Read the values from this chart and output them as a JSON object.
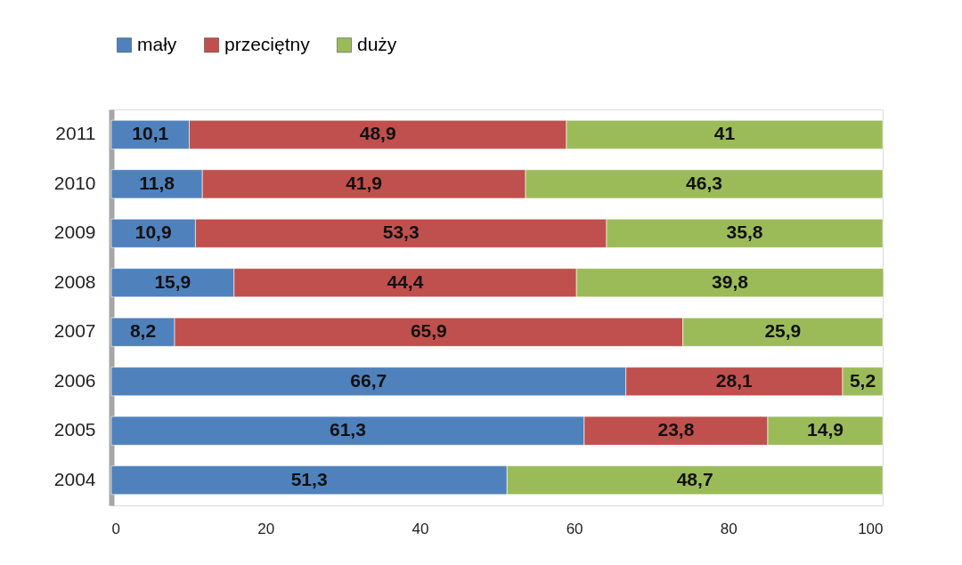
{
  "chart_data": {
    "type": "bar",
    "orientation": "horizontal",
    "stacked": true,
    "categories": [
      "2011",
      "2010",
      "2009",
      "2008",
      "2007",
      "2006",
      "2005",
      "2004"
    ],
    "series": [
      {
        "name": "mały",
        "color": "#4f81bd",
        "values": [
          10.1,
          11.8,
          10.9,
          15.9,
          8.2,
          66.7,
          61.3,
          51.3
        ],
        "value_labels": [
          "10,1",
          "11,8",
          "10,9",
          "15,9",
          "8,2",
          "66,7",
          "61,3",
          "51,3"
        ]
      },
      {
        "name": "przeciętny",
        "color": "#c0504d",
        "values": [
          48.9,
          41.9,
          53.3,
          44.4,
          65.9,
          28.1,
          23.8,
          null
        ],
        "value_labels": [
          "48,9",
          "41,9",
          "53,3",
          "44,4",
          "65,9",
          "28,1",
          "23,8",
          null
        ]
      },
      {
        "name": "duży",
        "color": "#9bbb59",
        "values": [
          41,
          46.3,
          35.8,
          39.8,
          25.9,
          5.2,
          14.9,
          48.7
        ],
        "value_labels": [
          "41",
          "46,3",
          "35,8",
          "39,8",
          "25,9",
          "5,2",
          "14,9",
          "48,7"
        ]
      }
    ],
    "xlim": [
      0,
      100
    ],
    "xticks": [
      0,
      20,
      40,
      60,
      80,
      100
    ],
    "legend": "top",
    "grid": false
  }
}
